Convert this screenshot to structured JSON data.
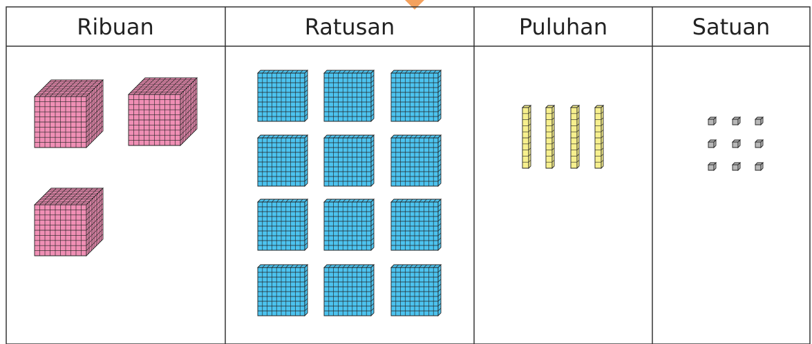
{
  "table": {
    "headers": [
      "Ribuan",
      "Ratusan",
      "Puluhan",
      "Satuan"
    ]
  }
}
